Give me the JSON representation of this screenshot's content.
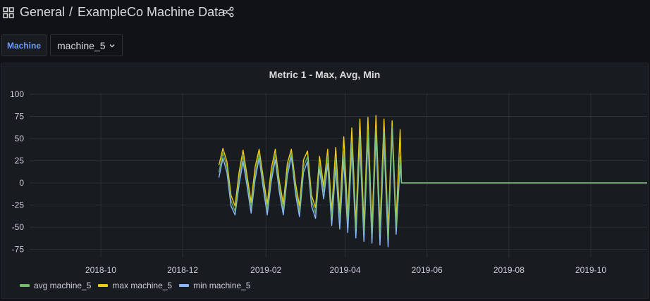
{
  "header": {
    "folder": "General",
    "separator": "/",
    "title": "ExampleCo Machine Data",
    "icons": {
      "menu": "grid-icon",
      "share": "share-icon"
    }
  },
  "variables": {
    "label": "Machine",
    "selected": "machine_5"
  },
  "panel": {
    "title": "Metric 1 - Max, Avg, Min"
  },
  "chart_data": {
    "type": "line",
    "title": "Metric 1 - Max, Avg, Min",
    "xlabel": "",
    "ylabel": "",
    "x_ticks": [
      "2018-10",
      "2018-12",
      "2019-02",
      "2019-04",
      "2019-06",
      "2019-08",
      "2019-10"
    ],
    "y_ticks": [
      100,
      75,
      50,
      25,
      0,
      -25,
      -50,
      -75
    ],
    "xlim": [
      "2018-08-09",
      "2019-11-12"
    ],
    "ylim": [
      -84,
      100
    ],
    "grid": true,
    "legend_position": "bottom-left",
    "colors": {
      "avg": "#73bf69",
      "max": "#f2cc0c",
      "min": "#8ab8ff",
      "background": "#181b1f",
      "grid": "#2c3235"
    },
    "series": [
      {
        "name": "avg machine_5",
        "color": "#73bf69",
        "x": [
          "2018-12-28",
          "2018-12-31",
          "2019-01-03",
          "2019-01-06",
          "2019-01-09",
          "2019-01-12",
          "2019-01-15",
          "2019-01-18",
          "2019-01-21",
          "2019-01-24",
          "2019-01-27",
          "2019-01-30",
          "2019-02-02",
          "2019-02-05",
          "2019-02-08",
          "2019-02-11",
          "2019-02-14",
          "2019-02-17",
          "2019-02-20",
          "2019-02-23",
          "2019-02-26",
          "2019-03-01",
          "2019-03-04",
          "2019-03-07",
          "2019-03-10",
          "2019-03-13",
          "2019-03-16",
          "2019-03-19",
          "2019-03-22",
          "2019-03-25",
          "2019-03-28",
          "2019-03-31",
          "2019-04-03",
          "2019-04-06",
          "2019-04-09",
          "2019-04-12",
          "2019-04-15",
          "2019-04-18",
          "2019-04-21",
          "2019-04-24",
          "2019-04-27",
          "2019-04-30",
          "2019-05-03",
          "2019-05-06",
          "2019-05-09",
          "2019-05-12",
          "2019-05-13",
          "2019-11-12"
        ],
        "values": [
          12,
          34,
          18,
          -20,
          -32,
          5,
          30,
          2,
          -28,
          10,
          33,
          0,
          -30,
          8,
          32,
          -4,
          -30,
          14,
          34,
          -6,
          -32,
          18,
          30,
          -20,
          -34,
          22,
          -10,
          30,
          -38,
          26,
          -40,
          36,
          -44,
          46,
          -52,
          52,
          -56,
          60,
          -60,
          62,
          -58,
          58,
          -62,
          64,
          -50,
          30,
          0,
          0
        ]
      },
      {
        "name": "max machine_5",
        "color": "#f2cc0c",
        "x": [
          "2018-12-28",
          "2018-12-31",
          "2019-01-03",
          "2019-01-06",
          "2019-01-09",
          "2019-01-12",
          "2019-01-15",
          "2019-01-18",
          "2019-01-21",
          "2019-01-24",
          "2019-01-27",
          "2019-01-30",
          "2019-02-02",
          "2019-02-05",
          "2019-02-08",
          "2019-02-11",
          "2019-02-14",
          "2019-02-17",
          "2019-02-20",
          "2019-02-23",
          "2019-02-26",
          "2019-03-01",
          "2019-03-04",
          "2019-03-07",
          "2019-03-10",
          "2019-03-13",
          "2019-03-16",
          "2019-03-19",
          "2019-03-22",
          "2019-03-25",
          "2019-03-28",
          "2019-03-31",
          "2019-04-03",
          "2019-04-06",
          "2019-04-09",
          "2019-04-12",
          "2019-04-15",
          "2019-04-18",
          "2019-04-21",
          "2019-04-24",
          "2019-04-27",
          "2019-04-30",
          "2019-05-03",
          "2019-05-06",
          "2019-05-09",
          "2019-05-12",
          "2019-05-13",
          "2019-11-12"
        ],
        "values": [
          20,
          39,
          24,
          -14,
          -26,
          12,
          37,
          8,
          -22,
          18,
          38,
          6,
          -24,
          16,
          38,
          2,
          -24,
          22,
          38,
          0,
          -26,
          26,
          36,
          -14,
          -28,
          30,
          -4,
          38,
          -32,
          40,
          -34,
          52,
          -38,
          62,
          -46,
          72,
          -48,
          74,
          -52,
          76,
          -50,
          72,
          -54,
          70,
          -44,
          60,
          0,
          0
        ]
      },
      {
        "name": "min machine_5",
        "color": "#8ab8ff",
        "x": [
          "2018-12-28",
          "2018-12-31",
          "2019-01-03",
          "2019-01-06",
          "2019-01-09",
          "2019-01-12",
          "2019-01-15",
          "2019-01-18",
          "2019-01-21",
          "2019-01-24",
          "2019-01-27",
          "2019-01-30",
          "2019-02-02",
          "2019-02-05",
          "2019-02-08",
          "2019-02-11",
          "2019-02-14",
          "2019-02-17",
          "2019-02-20",
          "2019-02-23",
          "2019-02-26",
          "2019-03-01",
          "2019-03-04",
          "2019-03-07",
          "2019-03-10",
          "2019-03-13",
          "2019-03-16",
          "2019-03-19",
          "2019-03-22",
          "2019-03-25",
          "2019-03-28",
          "2019-03-31",
          "2019-04-03",
          "2019-04-06",
          "2019-04-09",
          "2019-04-12",
          "2019-04-15",
          "2019-04-18",
          "2019-04-21",
          "2019-04-24",
          "2019-04-27",
          "2019-04-30",
          "2019-05-03",
          "2019-05-06",
          "2019-05-09",
          "2019-05-12",
          "2019-05-13",
          "2019-11-12"
        ],
        "values": [
          6,
          28,
          12,
          -26,
          -36,
          -2,
          24,
          -4,
          -34,
          4,
          28,
          -6,
          -36,
          2,
          26,
          -10,
          -36,
          8,
          30,
          -12,
          -38,
          12,
          24,
          -26,
          -40,
          16,
          -18,
          22,
          -48,
          18,
          -52,
          26,
          -56,
          38,
          -62,
          44,
          -66,
          50,
          -68,
          54,
          -70,
          48,
          -72,
          58,
          -58,
          20,
          0,
          0
        ]
      }
    ]
  }
}
